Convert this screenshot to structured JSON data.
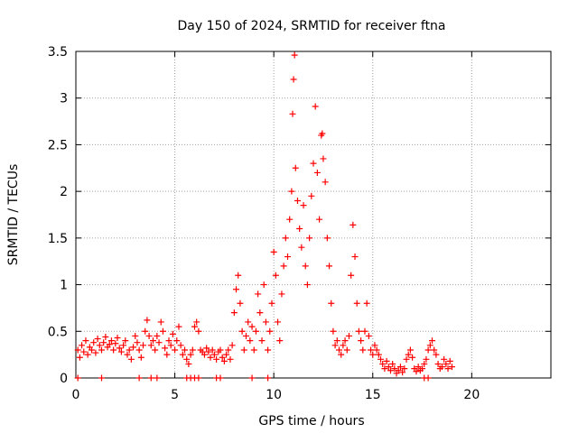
{
  "chart_data": {
    "type": "scatter",
    "title": "Day 150 of 2024, SRMTID for receiver ftna",
    "xlabel": "GPS time / hours",
    "ylabel": "SRMTID / TECUs",
    "xlim": [
      0,
      24
    ],
    "ylim": [
      0,
      3.5
    ],
    "xticks": [
      0,
      5,
      10,
      15,
      20
    ],
    "xtick_labels": [
      "0",
      "5",
      "10",
      "15",
      "20"
    ],
    "yticks": [
      0,
      0.5,
      1,
      1.5,
      2,
      2.5,
      3,
      3.5
    ],
    "ytick_labels": [
      "0",
      "0.5",
      "1",
      "1.5",
      "2",
      "2.5",
      "3",
      "3.5"
    ],
    "grid": true,
    "marker": "+",
    "color": "#ff0000",
    "series": [
      {
        "name": "SRMTID",
        "points": [
          [
            0.1,
            0.3
          ],
          [
            0.2,
            0.22
          ],
          [
            0.3,
            0.35
          ],
          [
            0.4,
            0.28
          ],
          [
            0.5,
            0.4
          ],
          [
            0.6,
            0.25
          ],
          [
            0.7,
            0.33
          ],
          [
            0.8,
            0.3
          ],
          [
            0.9,
            0.38
          ],
          [
            1.0,
            0.27
          ],
          [
            1.1,
            0.42
          ],
          [
            1.2,
            0.35
          ],
          [
            1.3,
            0.3
          ],
          [
            1.4,
            0.38
          ],
          [
            1.5,
            0.44
          ],
          [
            1.6,
            0.33
          ],
          [
            1.7,
            0.36
          ],
          [
            1.8,
            0.4
          ],
          [
            1.9,
            0.3
          ],
          [
            2.0,
            0.37
          ],
          [
            2.1,
            0.43
          ],
          [
            2.2,
            0.32
          ],
          [
            2.3,
            0.28
          ],
          [
            2.4,
            0.35
          ],
          [
            2.5,
            0.4
          ],
          [
            2.6,
            0.25
          ],
          [
            2.7,
            0.3
          ],
          [
            2.8,
            0.2
          ],
          [
            2.9,
            0.33
          ],
          [
            3.0,
            0.45
          ],
          [
            3.1,
            0.38
          ],
          [
            3.2,
            0.3
          ],
          [
            3.3,
            0.22
          ],
          [
            3.4,
            0.35
          ],
          [
            3.5,
            0.5
          ],
          [
            3.6,
            0.62
          ],
          [
            3.7,
            0.45
          ],
          [
            3.8,
            0.35
          ],
          [
            3.9,
            0.4
          ],
          [
            4.0,
            0.3
          ],
          [
            4.1,
            0.45
          ],
          [
            4.2,
            0.38
          ],
          [
            4.3,
            0.6
          ],
          [
            4.4,
            0.5
          ],
          [
            4.5,
            0.32
          ],
          [
            4.6,
            0.25
          ],
          [
            4.7,
            0.4
          ],
          [
            4.8,
            0.35
          ],
          [
            4.9,
            0.47
          ],
          [
            5.0,
            0.3
          ],
          [
            5.1,
            0.4
          ],
          [
            5.2,
            0.55
          ],
          [
            5.3,
            0.35
          ],
          [
            5.4,
            0.25
          ],
          [
            5.5,
            0.3
          ],
          [
            5.6,
            0.2
          ],
          [
            5.7,
            0.15
          ],
          [
            5.8,
            0.25
          ],
          [
            5.9,
            0.3
          ],
          [
            6.0,
            0.55
          ],
          [
            6.1,
            0.6
          ],
          [
            6.2,
            0.5
          ],
          [
            6.3,
            0.3
          ],
          [
            6.4,
            0.28
          ],
          [
            6.5,
            0.25
          ],
          [
            6.6,
            0.32
          ],
          [
            6.7,
            0.28
          ],
          [
            6.8,
            0.22
          ],
          [
            6.9,
            0.3
          ],
          [
            7.0,
            0.25
          ],
          [
            7.1,
            0.2
          ],
          [
            7.2,
            0.28
          ],
          [
            7.3,
            0.3
          ],
          [
            7.4,
            0.22
          ],
          [
            7.5,
            0.18
          ],
          [
            7.6,
            0.25
          ],
          [
            7.7,
            0.3
          ],
          [
            7.8,
            0.2
          ],
          [
            7.9,
            0.35
          ],
          [
            8.0,
            0.7
          ],
          [
            8.1,
            0.95
          ],
          [
            8.2,
            1.1
          ],
          [
            8.3,
            0.8
          ],
          [
            8.4,
            0.5
          ],
          [
            8.5,
            0.3
          ],
          [
            8.6,
            0.45
          ],
          [
            8.7,
            0.6
          ],
          [
            8.8,
            0.4
          ],
          [
            8.9,
            0.55
          ],
          [
            9.0,
            0.3
          ],
          [
            9.1,
            0.5
          ],
          [
            9.2,
            0.9
          ],
          [
            9.3,
            0.7
          ],
          [
            9.4,
            0.4
          ],
          [
            9.5,
            1.0
          ],
          [
            9.6,
            0.6
          ],
          [
            9.7,
            0.3
          ],
          [
            9.8,
            0.5
          ],
          [
            9.9,
            0.8
          ],
          [
            10.0,
            1.35
          ],
          [
            10.1,
            1.1
          ],
          [
            10.2,
            0.6
          ],
          [
            10.3,
            0.4
          ],
          [
            10.4,
            0.9
          ],
          [
            10.5,
            1.2
          ],
          [
            10.6,
            1.5
          ],
          [
            10.7,
            1.3
          ],
          [
            10.8,
            1.7
          ],
          [
            10.9,
            2.0
          ],
          [
            10.95,
            2.83
          ],
          [
            11.0,
            3.2
          ],
          [
            11.05,
            3.46
          ],
          [
            11.1,
            2.25
          ],
          [
            11.2,
            1.9
          ],
          [
            11.3,
            1.6
          ],
          [
            11.4,
            1.4
          ],
          [
            11.5,
            1.85
          ],
          [
            11.6,
            1.2
          ],
          [
            11.7,
            1.0
          ],
          [
            11.8,
            1.5
          ],
          [
            11.9,
            1.95
          ],
          [
            12.0,
            2.3
          ],
          [
            12.1,
            2.91
          ],
          [
            12.2,
            2.2
          ],
          [
            12.3,
            1.7
          ],
          [
            12.4,
            2.6
          ],
          [
            12.45,
            2.62
          ],
          [
            12.5,
            2.35
          ],
          [
            12.6,
            2.1
          ],
          [
            12.7,
            1.5
          ],
          [
            12.8,
            1.2
          ],
          [
            12.9,
            0.8
          ],
          [
            13.0,
            0.5
          ],
          [
            13.1,
            0.35
          ],
          [
            13.2,
            0.4
          ],
          [
            13.3,
            0.3
          ],
          [
            13.4,
            0.25
          ],
          [
            13.5,
            0.35
          ],
          [
            13.6,
            0.4
          ],
          [
            13.7,
            0.3
          ],
          [
            13.8,
            0.45
          ],
          [
            13.9,
            1.1
          ],
          [
            14.0,
            1.64
          ],
          [
            14.1,
            1.3
          ],
          [
            14.2,
            0.8
          ],
          [
            14.3,
            0.5
          ],
          [
            14.4,
            0.4
          ],
          [
            14.5,
            0.3
          ],
          [
            14.6,
            0.5
          ],
          [
            14.7,
            0.8
          ],
          [
            14.8,
            0.45
          ],
          [
            14.9,
            0.3
          ],
          [
            15.0,
            0.25
          ],
          [
            15.1,
            0.35
          ],
          [
            15.2,
            0.3
          ],
          [
            15.3,
            0.25
          ],
          [
            15.4,
            0.2
          ],
          [
            15.5,
            0.15
          ],
          [
            15.6,
            0.1
          ],
          [
            15.7,
            0.18
          ],
          [
            15.8,
            0.12
          ],
          [
            15.9,
            0.08
          ],
          [
            16.0,
            0.15
          ],
          [
            16.1,
            0.1
          ],
          [
            16.2,
            0.05
          ],
          [
            16.3,
            0.08
          ],
          [
            16.4,
            0.12
          ],
          [
            16.5,
            0.06
          ],
          [
            16.6,
            0.1
          ],
          [
            16.7,
            0.2
          ],
          [
            16.8,
            0.25
          ],
          [
            16.9,
            0.3
          ],
          [
            17.0,
            0.22
          ],
          [
            17.1,
            0.1
          ],
          [
            17.2,
            0.07
          ],
          [
            17.3,
            0.12
          ],
          [
            17.4,
            0.08
          ],
          [
            17.5,
            0.1
          ],
          [
            17.6,
            0.15
          ],
          [
            17.7,
            0.2
          ],
          [
            17.8,
            0.3
          ],
          [
            17.9,
            0.35
          ],
          [
            18.0,
            0.4
          ],
          [
            18.1,
            0.3
          ],
          [
            18.2,
            0.25
          ],
          [
            18.3,
            0.15
          ],
          [
            18.4,
            0.1
          ],
          [
            18.5,
            0.12
          ],
          [
            18.6,
            0.2
          ],
          [
            18.7,
            0.15
          ],
          [
            18.8,
            0.1
          ],
          [
            18.9,
            0.18
          ],
          [
            19.0,
            0.12
          ]
        ]
      }
    ],
    "zero_markers_x": [
      0.1,
      1.3,
      3.2,
      3.8,
      4.1,
      5.6,
      5.8,
      6.0,
      6.2,
      7.1,
      7.3,
      8.9,
      9.7,
      17.6,
      17.8
    ]
  }
}
